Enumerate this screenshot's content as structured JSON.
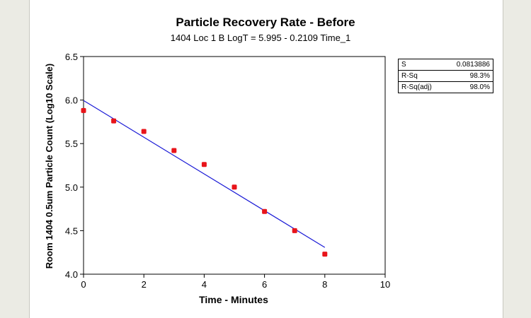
{
  "chart_data": {
    "type": "scatter",
    "title": "Particle Recovery Rate - Before",
    "subtitle": "1404 Loc 1 B LogT =  5.995 - 0.2109 Time_1",
    "xlabel": "Time - Minutes",
    "ylabel": "Room 1404 0.5um Particle Count (Log10 Scale)",
    "xlim": [
      0,
      10
    ],
    "ylim": [
      4.0,
      6.5
    ],
    "x_ticks": [
      "0",
      "2",
      "4",
      "6",
      "8",
      "10"
    ],
    "y_ticks": [
      "4.0",
      "4.5",
      "5.0",
      "5.5",
      "6.0",
      "6.5"
    ],
    "x_tick_values": [
      0,
      2,
      4,
      6,
      8,
      10
    ],
    "y_tick_values": [
      4.0,
      4.5,
      5.0,
      5.5,
      6.0,
      6.5
    ],
    "points": [
      {
        "x": 0,
        "y": 5.88
      },
      {
        "x": 1,
        "y": 5.76
      },
      {
        "x": 2,
        "y": 5.64
      },
      {
        "x": 3,
        "y": 5.42
      },
      {
        "x": 4,
        "y": 5.26
      },
      {
        "x": 5,
        "y": 5.0
      },
      {
        "x": 6,
        "y": 4.72
      },
      {
        "x": 7,
        "y": 4.5
      },
      {
        "x": 8,
        "y": 4.23
      }
    ],
    "fit_line": {
      "intercept": 5.995,
      "slope": -0.2109,
      "x_range": [
        0,
        8
      ]
    },
    "point_color": "#e8141a",
    "line_color": "#1a1ad6",
    "grid": false,
    "stats_box": {
      "placement": "top-right",
      "rows": [
        {
          "label": "S",
          "value": "0.0813886"
        },
        {
          "label": "R-Sq",
          "value": "98.3%"
        },
        {
          "label": "R-Sq(adj)",
          "value": "98.0%"
        }
      ]
    }
  }
}
